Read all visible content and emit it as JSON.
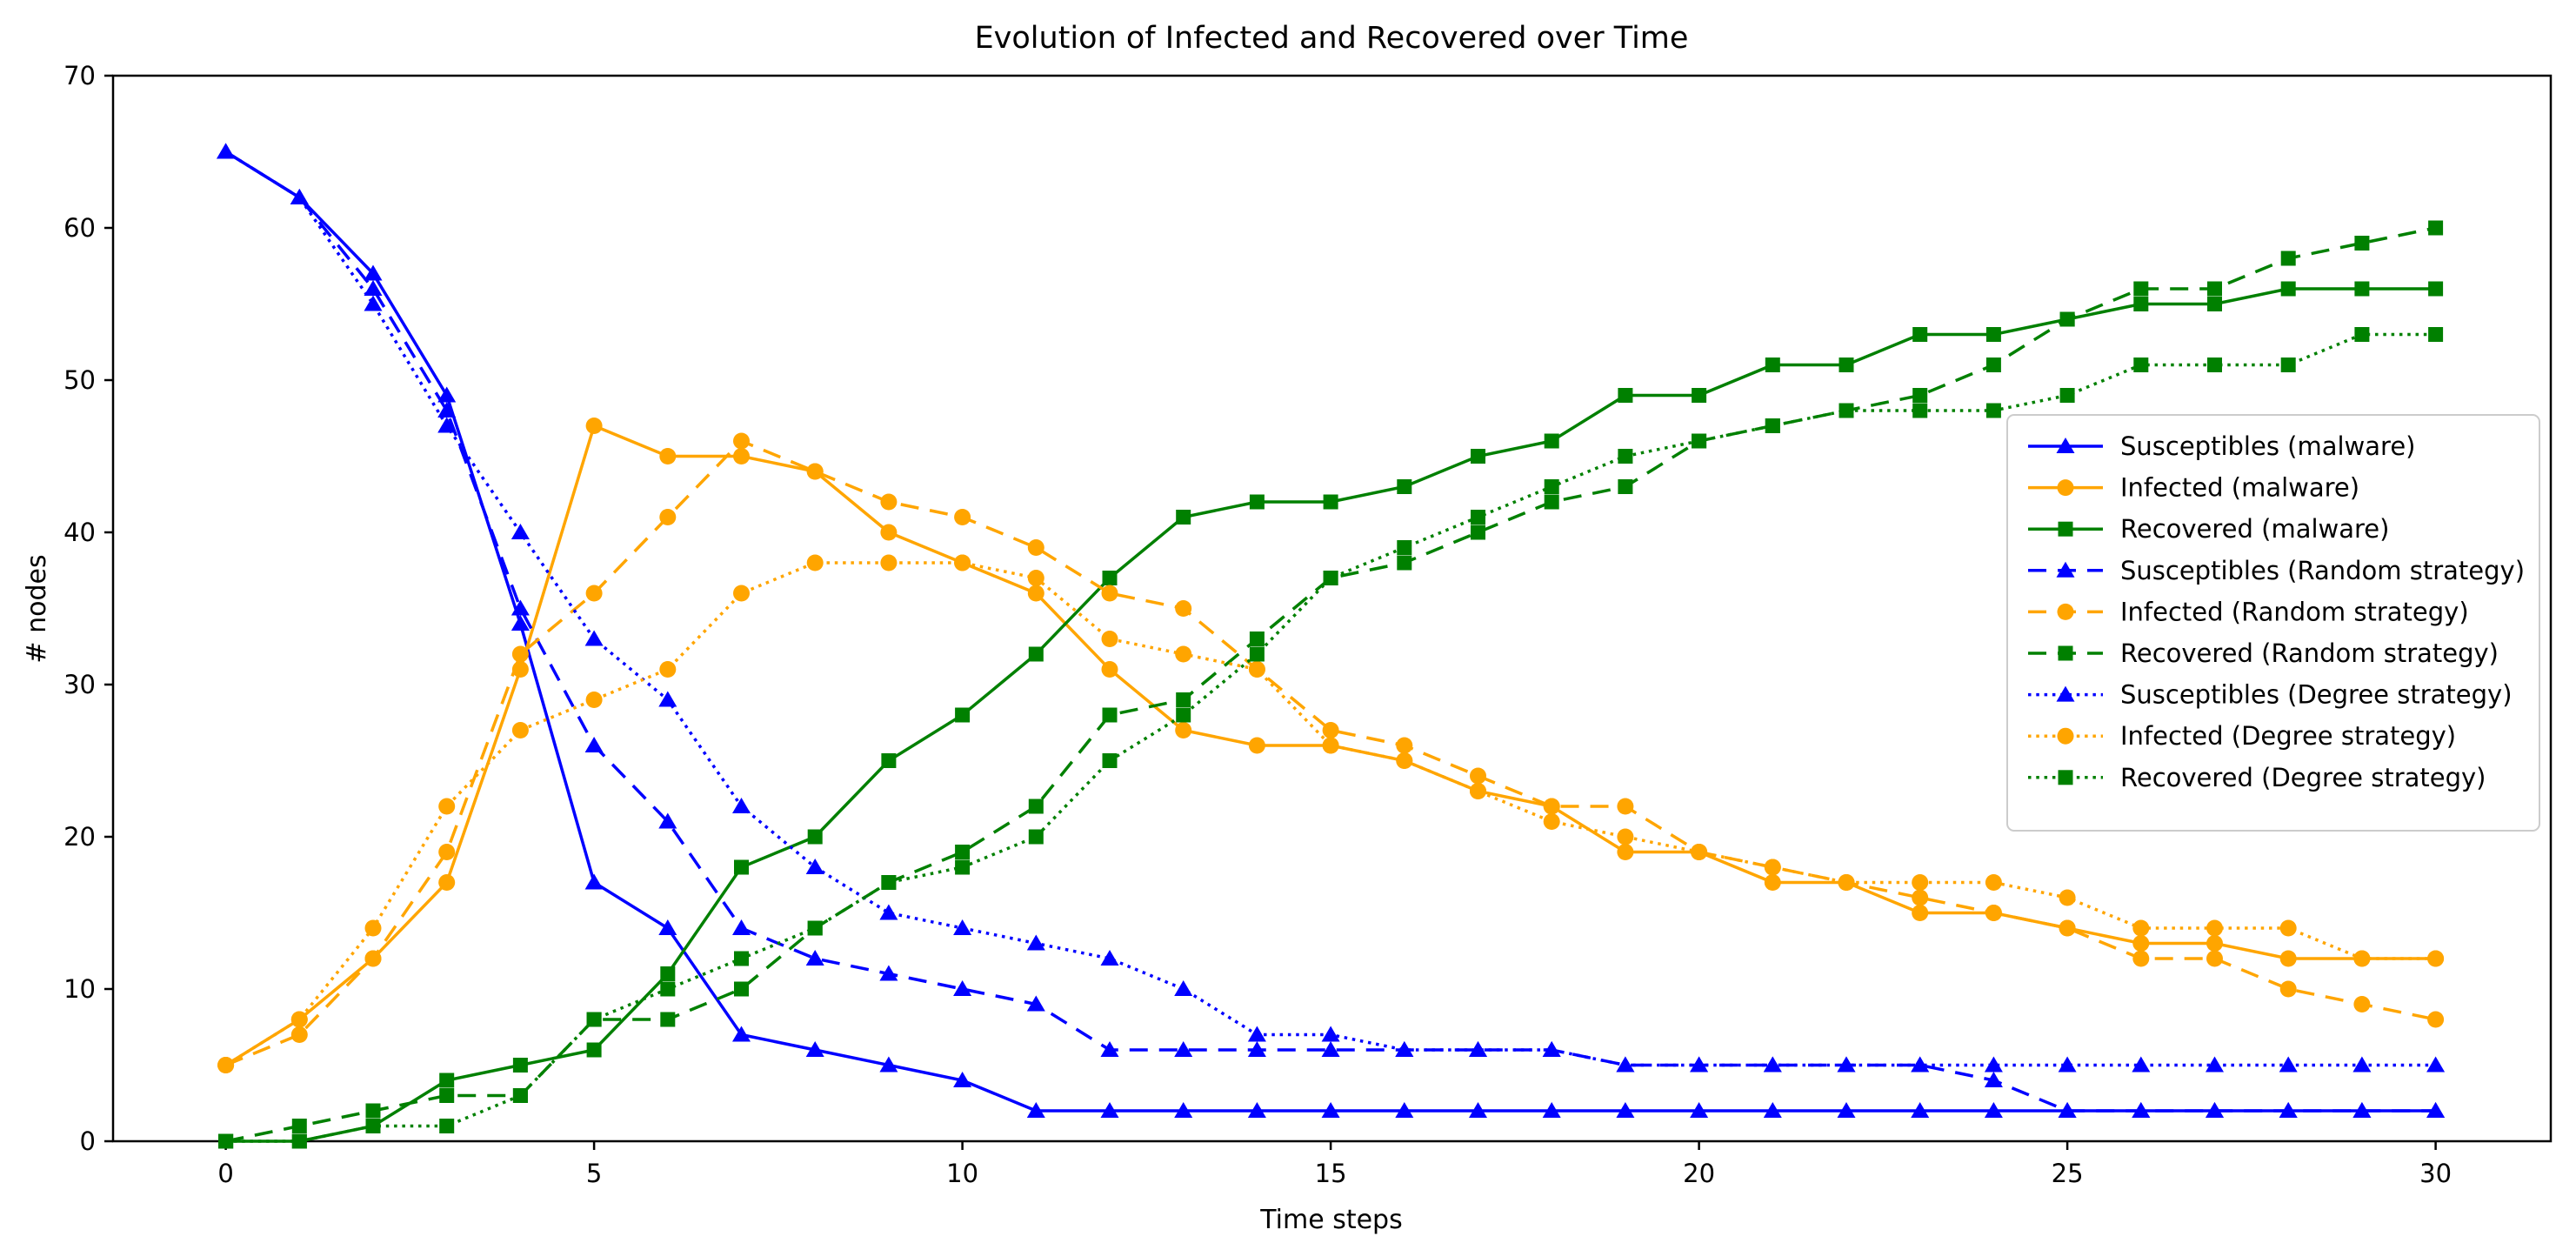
{
  "title": "Evolution of Infected and Recovered over Time",
  "chart_data": {
    "type": "line",
    "title": "Evolution of Infected and Recovered over Time",
    "xlabel": "Time steps",
    "ylabel": "# nodes",
    "xlim": [
      -1.53,
      31.56
    ],
    "ylim": [
      0,
      70
    ],
    "xticks": [
      0,
      5,
      10,
      15,
      20,
      25,
      30
    ],
    "yticks": [
      0,
      10,
      20,
      30,
      40,
      50,
      60,
      70
    ],
    "grid": false,
    "legend_position": "center right",
    "x": [
      0,
      1,
      2,
      3,
      4,
      5,
      6,
      7,
      8,
      9,
      10,
      11,
      12,
      13,
      14,
      15,
      16,
      17,
      18,
      19,
      20,
      21,
      22,
      23,
      24,
      25,
      26,
      27,
      28,
      29,
      30
    ],
    "series": [
      {
        "name": "Susceptibles (malware)",
        "color": "#0000ff",
        "line_style": "solid",
        "marker": "triangle",
        "values": [
          65,
          62,
          57,
          49,
          34,
          17,
          14,
          7,
          6,
          5,
          4,
          2,
          2,
          2,
          2,
          2,
          2,
          2,
          2,
          2,
          2,
          2,
          2,
          2,
          2,
          2,
          2,
          2,
          2,
          2,
          2
        ]
      },
      {
        "name": "Infected (malware)",
        "color": "#ffa500",
        "line_style": "solid",
        "marker": "circle",
        "values": [
          5,
          8,
          12,
          17,
          31,
          47,
          45,
          45,
          44,
          40,
          38,
          36,
          31,
          27,
          26,
          26,
          25,
          23,
          22,
          19,
          19,
          17,
          17,
          15,
          15,
          14,
          13,
          13,
          12,
          12,
          12
        ]
      },
      {
        "name": "Recovered (malware)",
        "color": "#008000",
        "line_style": "solid",
        "marker": "square",
        "values": [
          0,
          0,
          1,
          4,
          5,
          6,
          11,
          18,
          20,
          25,
          28,
          32,
          37,
          41,
          42,
          42,
          43,
          45,
          46,
          49,
          49,
          51,
          51,
          53,
          53,
          54,
          55,
          55,
          56,
          56,
          56
        ]
      },
      {
        "name": "Susceptibles (Random strategy)",
        "color": "#0000ff",
        "line_style": "dashed",
        "marker": "triangle",
        "values": [
          65,
          62,
          56,
          48,
          35,
          26,
          21,
          14,
          12,
          11,
          10,
          9,
          6,
          6,
          6,
          6,
          6,
          6,
          6,
          5,
          5,
          5,
          5,
          5,
          4,
          2,
          2,
          2,
          2,
          2,
          2
        ]
      },
      {
        "name": "Infected (Random strategy)",
        "color": "#ffa500",
        "line_style": "dashed",
        "marker": "circle",
        "values": [
          5,
          7,
          12,
          19,
          32,
          36,
          41,
          46,
          44,
          42,
          41,
          39,
          36,
          35,
          31,
          27,
          26,
          24,
          22,
          22,
          19,
          18,
          17,
          16,
          15,
          14,
          12,
          12,
          10,
          9,
          8
        ]
      },
      {
        "name": "Recovered (Random strategy)",
        "color": "#008000",
        "line_style": "dashed",
        "marker": "square",
        "values": [
          0,
          1,
          2,
          3,
          3,
          8,
          8,
          10,
          14,
          17,
          19,
          22,
          28,
          29,
          33,
          37,
          38,
          40,
          42,
          43,
          46,
          47,
          48,
          49,
          51,
          54,
          56,
          56,
          58,
          59,
          60
        ]
      },
      {
        "name": "Susceptibles (Degree strategy)",
        "color": "#0000ff",
        "line_style": "dotted",
        "marker": "triangle",
        "values": [
          65,
          62,
          55,
          47,
          40,
          33,
          29,
          22,
          18,
          15,
          14,
          13,
          12,
          10,
          7,
          7,
          6,
          6,
          6,
          5,
          5,
          5,
          5,
          5,
          5,
          5,
          5,
          5,
          5,
          5,
          5
        ]
      },
      {
        "name": "Infected (Degree strategy)",
        "color": "#ffa500",
        "line_style": "dotted",
        "marker": "circle",
        "values": [
          5,
          8,
          14,
          22,
          27,
          29,
          31,
          36,
          38,
          38,
          38,
          37,
          33,
          32,
          31,
          26,
          25,
          23,
          21,
          20,
          19,
          18,
          17,
          17,
          17,
          16,
          14,
          14,
          14,
          12,
          12
        ]
      },
      {
        "name": "Recovered (Degree strategy)",
        "color": "#008000",
        "line_style": "dotted",
        "marker": "square",
        "values": [
          0,
          0,
          1,
          1,
          3,
          8,
          10,
          12,
          14,
          17,
          18,
          20,
          25,
          28,
          32,
          37,
          39,
          41,
          43,
          45,
          46,
          47,
          48,
          48,
          48,
          49,
          51,
          51,
          51,
          53,
          53
        ]
      }
    ]
  },
  "colors": {
    "susceptibles": "#0000ff",
    "infected": "#ffa500",
    "recovered": "#008000",
    "axis": "#000000",
    "legend_border": "#cccccc",
    "background": "#ffffff"
  }
}
